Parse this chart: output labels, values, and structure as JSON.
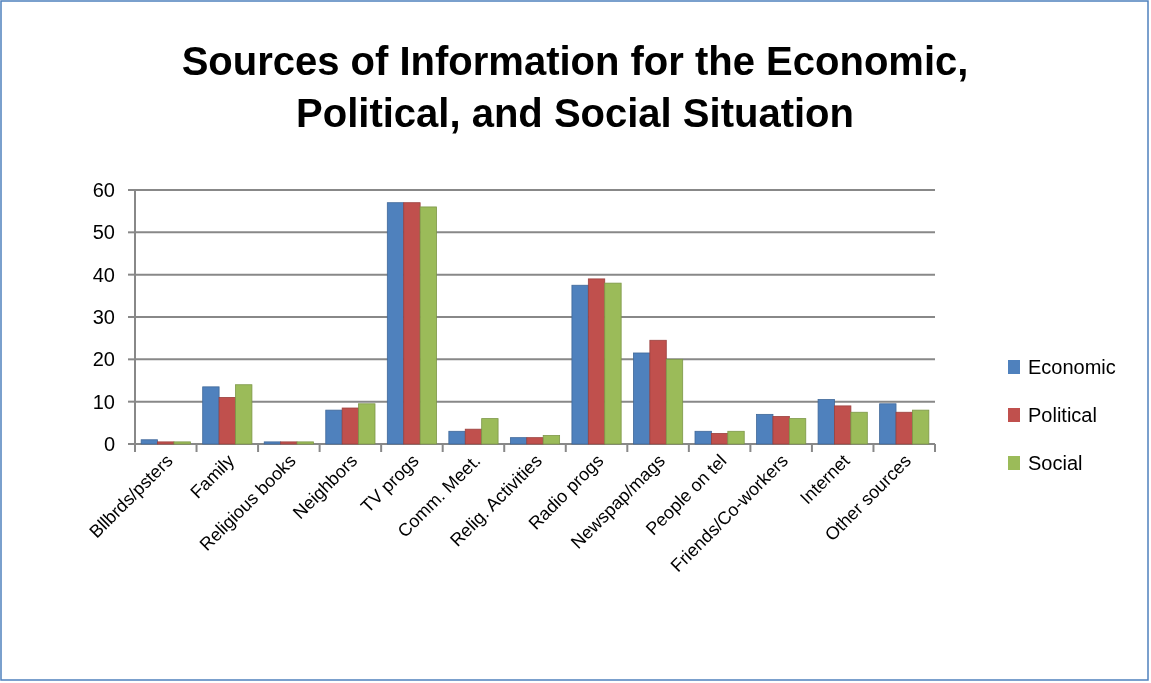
{
  "chart_data": {
    "type": "bar",
    "title": "Sources of Information for the Economic, Political, and Social Situation",
    "categories": [
      "Bllbrds/psters",
      "Family",
      "Religious books",
      "Neighbors",
      "TV progs",
      "Comm. Meet.",
      "Relig. Activities",
      "Radio progs",
      "Newspap/mags",
      "People on tel",
      "Friends/Co-workers",
      "Internet",
      "Other sources"
    ],
    "series": [
      {
        "name": "Economic",
        "color": "#4f81bd",
        "values": [
          1,
          13.5,
          0.5,
          8,
          57,
          3,
          1.5,
          37.5,
          21.5,
          3,
          7,
          10.5,
          9.5
        ]
      },
      {
        "name": "Political",
        "color": "#c0504d",
        "values": [
          0.5,
          11,
          0.5,
          8.5,
          57,
          3.5,
          1.5,
          39,
          24.5,
          2.5,
          6.5,
          9,
          7.5
        ]
      },
      {
        "name": "Social",
        "color": "#9bbb59",
        "values": [
          0.5,
          14,
          0.5,
          9.5,
          56,
          6,
          2,
          38,
          20,
          3,
          6,
          7.5,
          8
        ]
      }
    ],
    "ylim": [
      0,
      60
    ],
    "yticks": [
      0,
      10,
      20,
      30,
      40,
      50,
      60
    ],
    "grid": "y",
    "legend": "right"
  }
}
